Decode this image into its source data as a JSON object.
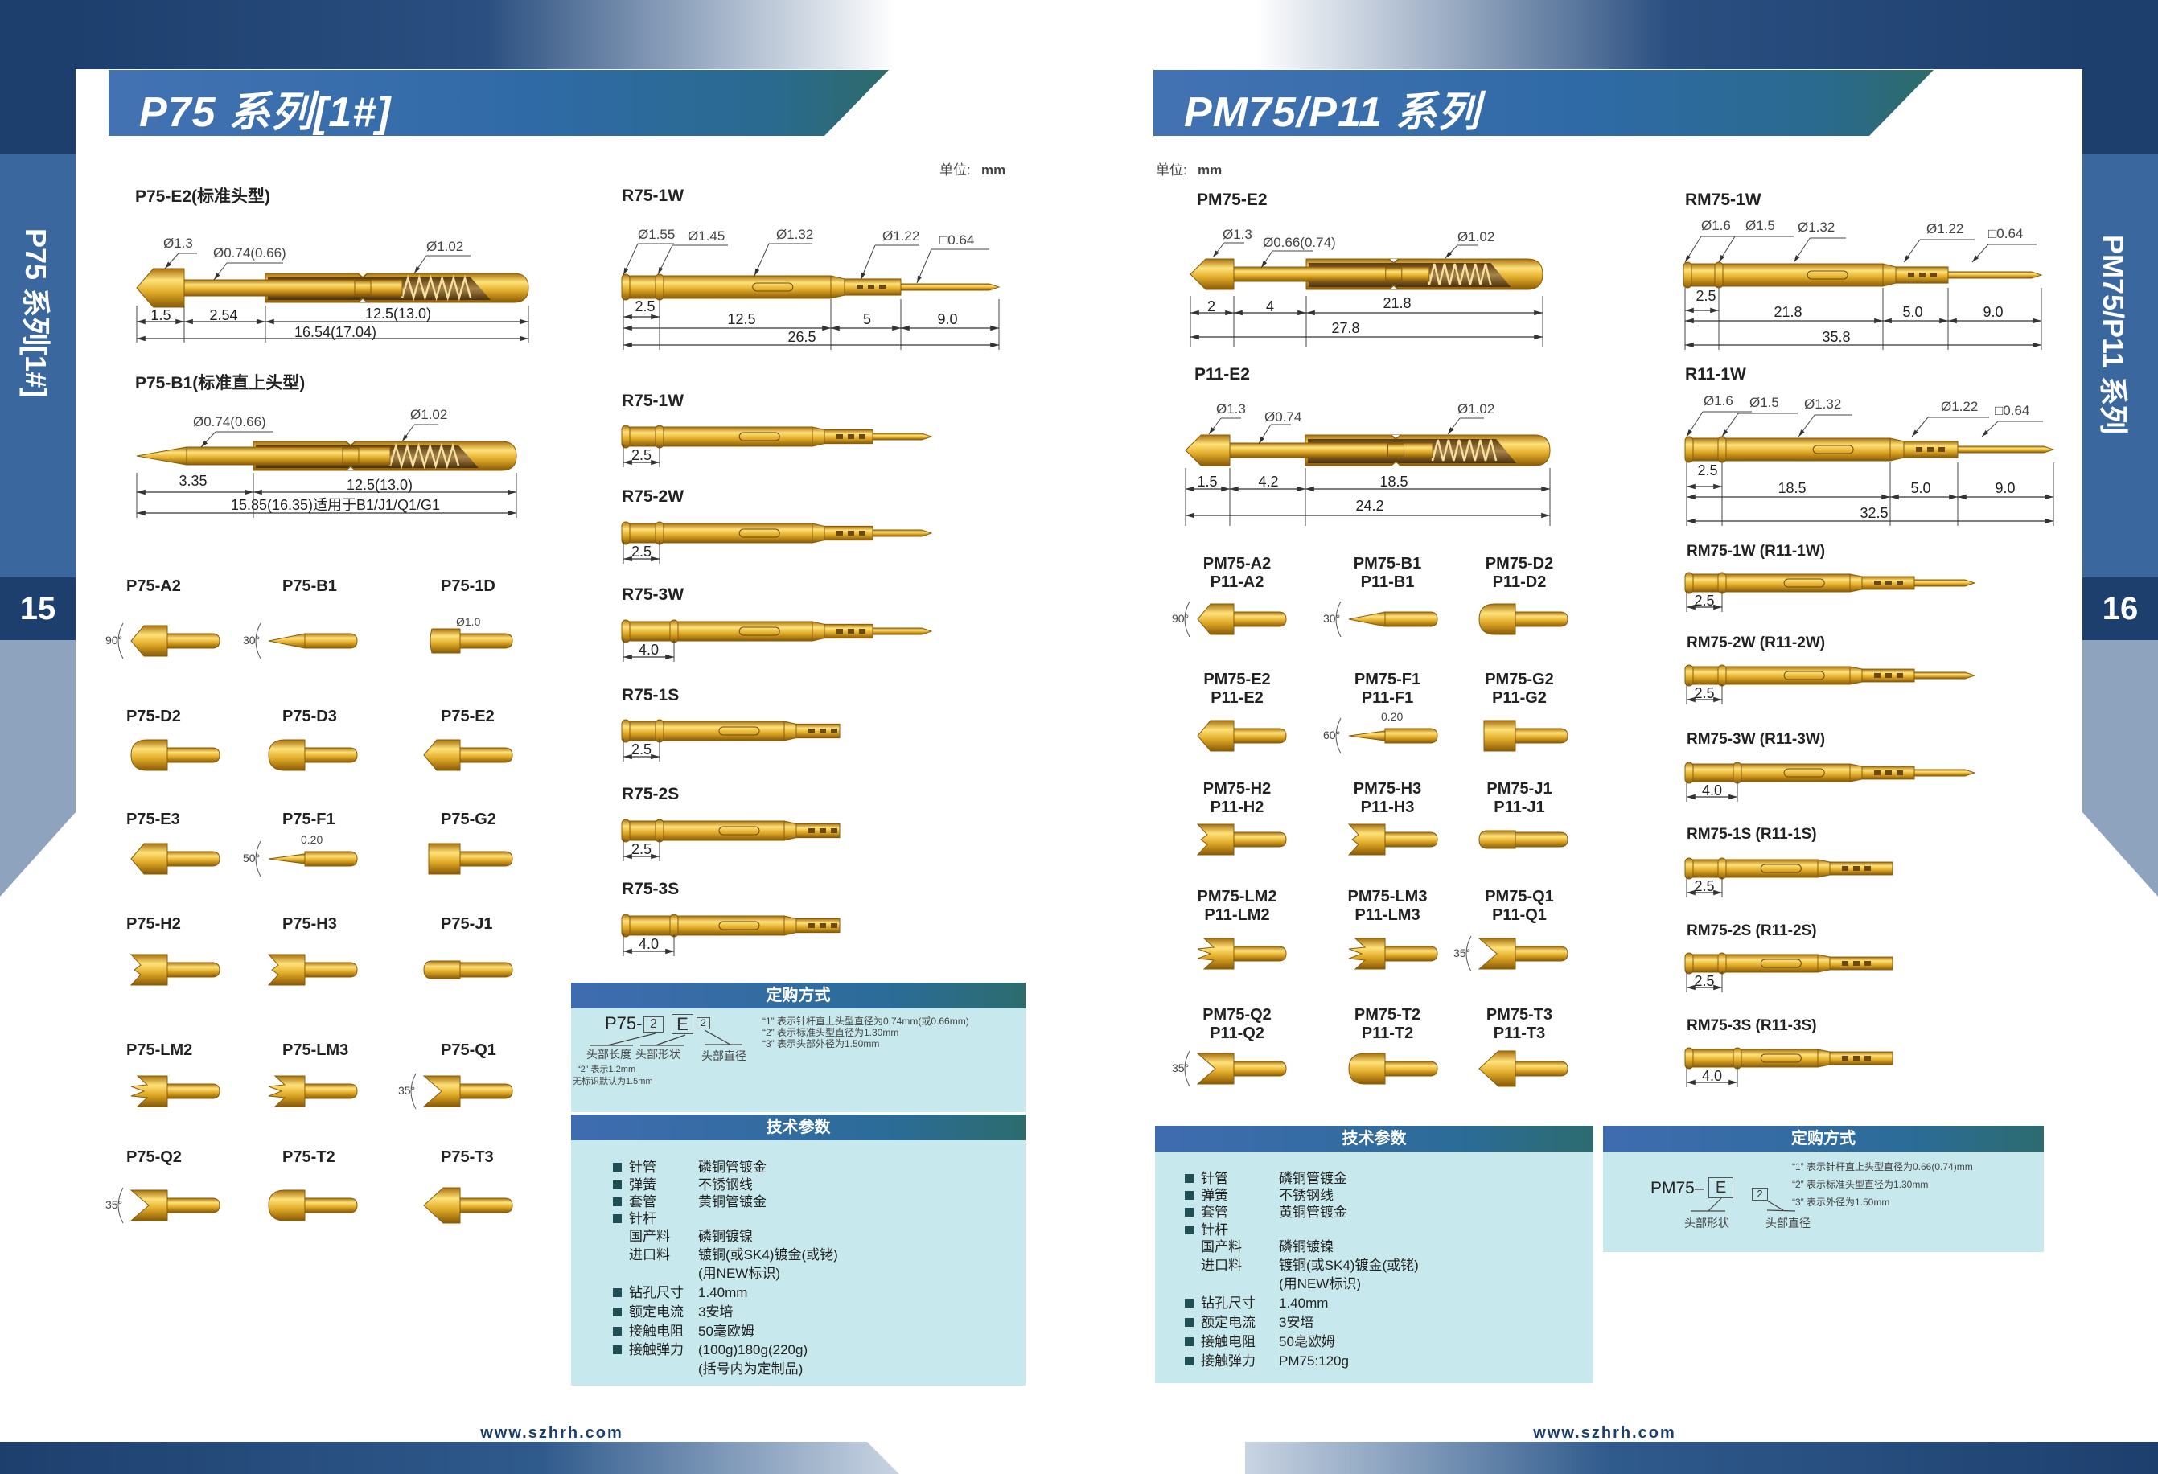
{
  "left_page": {
    "banner_title": "P75 系列[1#]",
    "side_label": "P75 系列[1#]",
    "page_number": "15",
    "unit_label": "单位:",
    "unit_value": "mm",
    "website": "www.szhrh.com",
    "probes": [
      {
        "title": "P75-E2(标准头型)",
        "diameters": [
          "Ø1.3",
          "Ø0.74(0.66)",
          "Ø1.02"
        ],
        "dims": [
          "1.5",
          "2.54",
          "12.5(13.0)",
          "16.54(17.04)"
        ]
      },
      {
        "title": "P75-B1(标准直上头型)",
        "diameters": [
          "Ø0.74(0.66)",
          "Ø1.02"
        ],
        "dims": [
          "3.35",
          "12.5(13.0)",
          "15.85(16.35)适用于B1/J1/Q1/G1"
        ]
      }
    ],
    "receptacle_detail": {
      "title": "R75-1W",
      "diameters": [
        "Ø1.55",
        "Ø1.45",
        "Ø1.32",
        "Ø1.22",
        "□0.64"
      ],
      "dims": [
        "2.5",
        "12.5",
        "5",
        "9.0",
        "26.5"
      ]
    },
    "receptacles": [
      {
        "title": "R75-1W",
        "dim": "2.5"
      },
      {
        "title": "R75-2W",
        "dim": "2.5"
      },
      {
        "title": "R75-3W",
        "dim": "4.0"
      },
      {
        "title": "R75-1S",
        "dim": "2.5"
      },
      {
        "title": "R75-2S",
        "dim": "2.5"
      },
      {
        "title": "R75-3S",
        "dim": "4.0"
      }
    ],
    "head_types": [
      {
        "name": "P75-A2",
        "shape": "cone",
        "notes": [
          "90°"
        ]
      },
      {
        "name": "P75-B1",
        "shape": "point",
        "notes": [
          "30°"
        ]
      },
      {
        "name": "P75-1D",
        "shape": "flat-small",
        "notes": [
          "Ø1.0"
        ]
      },
      {
        "name": "P75-D2",
        "shape": "dome",
        "notes": []
      },
      {
        "name": "P75-D3",
        "shape": "dome",
        "notes": []
      },
      {
        "name": "P75-E2",
        "shape": "cone",
        "notes": []
      },
      {
        "name": "P75-E3",
        "shape": "cone",
        "notes": []
      },
      {
        "name": "P75-F1",
        "shape": "needle",
        "notes": [
          "50°",
          "0.20"
        ]
      },
      {
        "name": "P75-G2",
        "shape": "flat",
        "notes": []
      },
      {
        "name": "P75-H2",
        "shape": "crown",
        "notes": []
      },
      {
        "name": "P75-H3",
        "shape": "crown",
        "notes": []
      },
      {
        "name": "P75-J1",
        "shape": "plain",
        "notes": []
      },
      {
        "name": "P75-LM2",
        "shape": "star",
        "notes": []
      },
      {
        "name": "P75-LM3",
        "shape": "star",
        "notes": []
      },
      {
        "name": "P75-Q1",
        "shape": "vee",
        "notes": [
          "35°"
        ]
      },
      {
        "name": "P75-Q2",
        "shape": "vee",
        "notes": [
          "35°"
        ]
      },
      {
        "name": "P75-T2",
        "shape": "dome",
        "notes": []
      },
      {
        "name": "P75-T3",
        "shape": "wide-cone",
        "notes": []
      }
    ],
    "order": {
      "header": "定购方式",
      "prefix": "P75-",
      "boxes": [
        "2",
        "E",
        "2"
      ],
      "labels": [
        "头部长度",
        "头部形状",
        "头部直径"
      ],
      "length_notes": [
        "“2” 表示1.2mm",
        "无标识默认为1.5mm"
      ],
      "notes": [
        "“1” 表示针杆直上头型直径为0.74mm(或0.66mm)",
        "“2” 表示标准头型直径为1.30mm",
        "“3” 表示头部外径为1.50mm"
      ]
    },
    "tech": {
      "header": "技术参数",
      "rows": [
        {
          "label": "针管",
          "value": "磷铜管镀金",
          "sub": false
        },
        {
          "label": "弹簧",
          "value": "不锈钢线",
          "sub": false
        },
        {
          "label": "套管",
          "value": "黄铜管镀金",
          "sub": false
        },
        {
          "label": "针杆",
          "value": "",
          "sub": false
        },
        {
          "label": "国产料",
          "value": "磷铜镀镍",
          "sub": true
        },
        {
          "label": "进口料",
          "value": "镀铜(或SK4)镀金(或铑)",
          "sub": true
        },
        {
          "label": "",
          "value": "(用NEW标识)",
          "sub": true
        },
        {
          "label": "钻孔尺寸",
          "value": "1.40mm",
          "sub": false
        },
        {
          "label": "额定电流",
          "value": "3安培",
          "sub": false
        },
        {
          "label": "接触电阻",
          "value": "50毫欧姆",
          "sub": false
        },
        {
          "label": "接触弹力",
          "value": "(100g)180g(220g)",
          "sub": false
        },
        {
          "label": "",
          "value": "(括号内为定制品)",
          "sub": true
        }
      ]
    }
  },
  "right_page": {
    "banner_title": "PM75/P11 系列",
    "side_label": "PM75/P11 系列",
    "page_number": "16",
    "unit_label": "单位:",
    "unit_value": "mm",
    "website": "www.szhrh.com",
    "probes": [
      {
        "title": "PM75-E2",
        "diameters": [
          "Ø1.3",
          "Ø0.66(0.74)",
          "Ø1.02"
        ],
        "dims": [
          "2",
          "4",
          "21.8",
          "27.8"
        ]
      },
      {
        "title": "P11-E2",
        "diameters": [
          "Ø1.3",
          "Ø0.74",
          "Ø1.02"
        ],
        "dims": [
          "1.5",
          "4.2",
          "18.5",
          "24.2"
        ]
      }
    ],
    "receptacle_details": [
      {
        "title": "RM75-1W",
        "diameters": [
          "Ø1.6",
          "Ø1.5",
          "Ø1.32",
          "Ø1.22",
          "□0.64"
        ],
        "dims": [
          "2.5",
          "21.8",
          "5.0",
          "9.0",
          "35.8"
        ]
      },
      {
        "title": "R11-1W",
        "diameters": [
          "Ø1.6",
          "Ø1.5",
          "Ø1.32",
          "Ø1.22",
          "□0.64"
        ],
        "dims": [
          "2.5",
          "18.5",
          "5.0",
          "9.0",
          "32.5"
        ]
      }
    ],
    "receptacles": [
      {
        "title": "RM75-1W  (R11-1W)",
        "dim": "2.5"
      },
      {
        "title": "RM75-2W  (R11-2W)",
        "dim": "2.5"
      },
      {
        "title": "RM75-3W  (R11-3W)",
        "dim": "4.0"
      },
      {
        "title": "RM75-1S  (R11-1S)",
        "dim": "2.5"
      },
      {
        "title": "RM75-2S  (R11-2S)",
        "dim": "2.5"
      },
      {
        "title": "RM75-3S  (R11-3S)",
        "dim": "4.0"
      }
    ],
    "head_types": [
      {
        "name": "PM75-A2",
        "alt": "P11-A2",
        "shape": "cone",
        "notes": [
          "90°"
        ]
      },
      {
        "name": "PM75-B1",
        "alt": "P11-B1",
        "shape": "point",
        "notes": [
          "30°"
        ]
      },
      {
        "name": "PM75-D2",
        "alt": "P11-D2",
        "shape": "dome",
        "notes": []
      },
      {
        "name": "PM75-E2",
        "alt": "P11-E2",
        "shape": "cone",
        "notes": []
      },
      {
        "name": "PM75-F1",
        "alt": "P11-F1",
        "shape": "needle",
        "notes": [
          "60°",
          "0.20"
        ]
      },
      {
        "name": "PM75-G2",
        "alt": "P11-G2",
        "shape": "flat",
        "notes": []
      },
      {
        "name": "PM75-H2",
        "alt": "P11-H2",
        "shape": "crown",
        "notes": []
      },
      {
        "name": "PM75-H3",
        "alt": "P11-H3",
        "shape": "crown",
        "notes": []
      },
      {
        "name": "PM75-J1",
        "alt": "P11-J1",
        "shape": "plain",
        "notes": []
      },
      {
        "name": "PM75-LM2",
        "alt": "P11-LM2",
        "shape": "star",
        "notes": []
      },
      {
        "name": "PM75-LM3",
        "alt": "P11-LM3",
        "shape": "star",
        "notes": []
      },
      {
        "name": "PM75-Q1",
        "alt": "P11-Q1",
        "shape": "vee",
        "notes": [
          "35°"
        ]
      },
      {
        "name": "PM75-Q2",
        "alt": "P11-Q2",
        "shape": "vee",
        "notes": [
          "35°"
        ]
      },
      {
        "name": "PM75-T2",
        "alt": "P11-T2",
        "shape": "dome",
        "notes": []
      },
      {
        "name": "PM75-T3",
        "alt": "P11-T3",
        "shape": "wide-cone",
        "notes": []
      }
    ],
    "order": {
      "header": "定购方式",
      "prefix": "PM75–",
      "boxes": [
        "E",
        "2"
      ],
      "labels": [
        "头部形状",
        "头部直径"
      ],
      "notes": [
        "“1” 表示针杆直上头型直径为0.66(0.74)mm",
        "“2” 表示标准头型直径为1.30mm",
        "“3” 表示外径为1.50mm"
      ]
    },
    "tech": {
      "header": "技术参数",
      "rows": [
        {
          "label": "针管",
          "value": "磷铜管镀金",
          "sub": false
        },
        {
          "label": "弹簧",
          "value": "不锈钢线",
          "sub": false
        },
        {
          "label": "套管",
          "value": "黄铜管镀金",
          "sub": false
        },
        {
          "label": "针杆",
          "value": "",
          "sub": false
        },
        {
          "label": "国产料",
          "value": "磷铜镀镍",
          "sub": true
        },
        {
          "label": "进口料",
          "value": "镀铜(或SK4)镀金(或铑)",
          "sub": true
        },
        {
          "label": "",
          "value": "(用NEW标识)",
          "sub": true
        },
        {
          "label": "钻孔尺寸",
          "value": "1.40mm",
          "sub": false
        },
        {
          "label": "额定电流",
          "value": "3安培",
          "sub": false
        },
        {
          "label": "接触电阻",
          "value": "50毫欧姆",
          "sub": false
        },
        {
          "label": "接触弹力",
          "value": "PM75:120g",
          "sub": false
        }
      ]
    }
  },
  "colors": {
    "navy": "#1d3f6e",
    "mid_blue": "#3a689e",
    "banner_blue": "#3f6cb0",
    "box_bg": "#c7e8ec",
    "gold": "#e0b030"
  }
}
